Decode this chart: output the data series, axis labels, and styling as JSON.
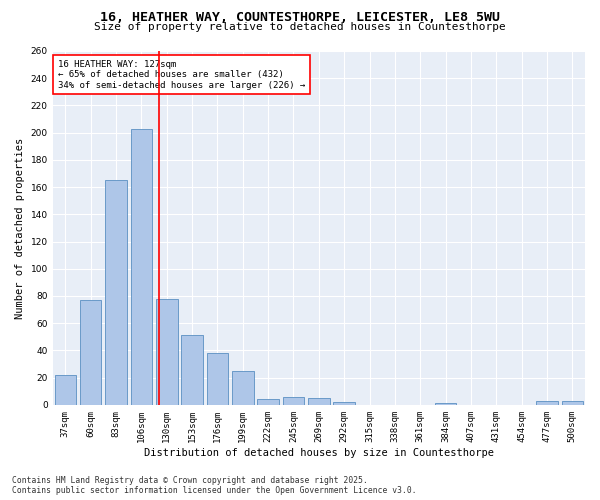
{
  "title_line1": "16, HEATHER WAY, COUNTESTHORPE, LEICESTER, LE8 5WU",
  "title_line2": "Size of property relative to detached houses in Countesthorpe",
  "xlabel": "Distribution of detached houses by size in Countesthorpe",
  "ylabel": "Number of detached properties",
  "categories": [
    "37sqm",
    "60sqm",
    "83sqm",
    "106sqm",
    "130sqm",
    "153sqm",
    "176sqm",
    "199sqm",
    "222sqm",
    "245sqm",
    "269sqm",
    "292sqm",
    "315sqm",
    "338sqm",
    "361sqm",
    "384sqm",
    "407sqm",
    "431sqm",
    "454sqm",
    "477sqm",
    "500sqm"
  ],
  "values": [
    22,
    77,
    165,
    203,
    78,
    51,
    38,
    25,
    4,
    6,
    5,
    2,
    0,
    0,
    0,
    1,
    0,
    0,
    0,
    3,
    3
  ],
  "bar_color": "#aec6e8",
  "bar_edgecolor": "#5a8fc2",
  "vline_x": 3.7,
  "vline_color": "red",
  "annotation_text": "16 HEATHER WAY: 127sqm\n← 65% of detached houses are smaller (432)\n34% of semi-detached houses are larger (226) →",
  "annotation_box_color": "white",
  "annotation_box_edgecolor": "red",
  "ylim": [
    0,
    260
  ],
  "yticks": [
    0,
    20,
    40,
    60,
    80,
    100,
    120,
    140,
    160,
    180,
    200,
    220,
    240,
    260
  ],
  "bg_color": "#e8eef7",
  "footer_line1": "Contains HM Land Registry data © Crown copyright and database right 2025.",
  "footer_line2": "Contains public sector information licensed under the Open Government Licence v3.0.",
  "title_fontsize": 9.5,
  "subtitle_fontsize": 8,
  "xlabel_fontsize": 7.5,
  "ylabel_fontsize": 7.5,
  "tick_fontsize": 6.5,
  "annotation_fontsize": 6.5,
  "footer_fontsize": 5.8
}
